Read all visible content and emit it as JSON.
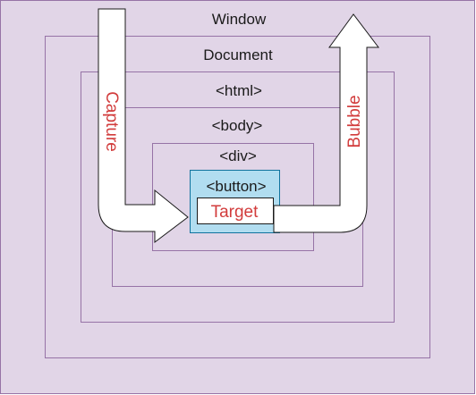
{
  "diagram": {
    "labels": {
      "window": "Window",
      "document": "Document",
      "html": "<html>",
      "body": "<body>",
      "div": "<div>",
      "button": "<button>",
      "target": "Target",
      "capture": "Capture",
      "bubble": "Bubble"
    },
    "colors": {
      "background": "#e1d5e7",
      "outline": "#9673a6",
      "button_fill": "#b1ddf0",
      "button_stroke": "#10739e",
      "arrow_fill": "#ffffff",
      "arrow_stroke": "#1a1a1a",
      "accent_text": "#d23c3c"
    }
  }
}
